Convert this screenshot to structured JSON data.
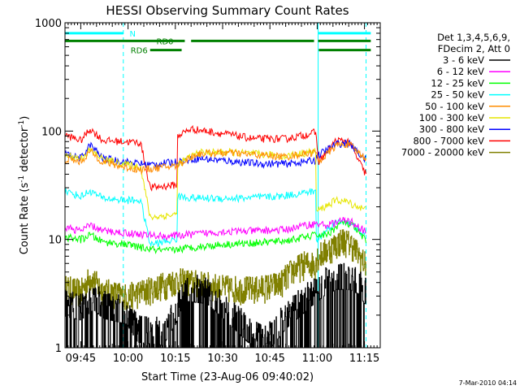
{
  "chart_data": {
    "type": "line",
    "title": "HESSI Observing Summary Count Rates",
    "xlabel": "Start Time (23-Aug-06 09:40:02)",
    "ylabel_main": "Count Rate (s",
    "ylabel_sup1": "-1",
    "ylabel_mid": " detector",
    "ylabel_sup2": "-1",
    "ylabel_end": ")",
    "ylog": true,
    "ylim": [
      1,
      1000
    ],
    "xlim_min": [
      0,
      100
    ],
    "xticks": [
      {
        "label": "09:45",
        "t": 5
      },
      {
        "label": "10:00",
        "t": 20
      },
      {
        "label": "10:15",
        "t": 35
      },
      {
        "label": "10:30",
        "t": 50
      },
      {
        "label": "10:45",
        "t": 65
      },
      {
        "label": "11:00",
        "t": 80
      },
      {
        "label": "11:15",
        "t": 95
      }
    ],
    "yticks": [
      {
        "label": "1",
        "v": 1
      },
      {
        "label": "10",
        "v": 10
      },
      {
        "label": "100",
        "v": 100
      },
      {
        "label": "1000",
        "v": 1000
      }
    ],
    "legend_header": [
      "Det 1,3,4,5,6,9,",
      "FDecim 2, Att 0"
    ],
    "legend_position": "top-right, outside plot",
    "series": [
      {
        "name": "3 - 6 keV",
        "color": "#000000",
        "knots": [
          [
            0,
            2.6
          ],
          [
            5,
            2.4
          ],
          [
            9,
            3.0
          ],
          [
            12,
            2.5
          ],
          [
            19.5,
            2.2
          ],
          [
            23,
            1.5
          ],
          [
            31,
            1.4
          ],
          [
            35,
            2.2
          ],
          [
            38,
            3.6
          ],
          [
            45,
            3.4
          ],
          [
            52,
            2.2
          ],
          [
            58,
            1.5
          ],
          [
            64,
            1.2
          ],
          [
            70,
            2.0
          ],
          [
            78,
            3.2
          ],
          [
            82,
            4.0
          ],
          [
            86,
            4.6
          ],
          [
            90,
            4.6
          ],
          [
            93,
            4.2
          ],
          [
            95,
            3.4
          ]
        ]
      },
      {
        "name": "6 - 12 keV",
        "color": "#ff00ff",
        "knots": [
          [
            0,
            13
          ],
          [
            5,
            12
          ],
          [
            8,
            13.5
          ],
          [
            12,
            12
          ],
          [
            19.5,
            11.5
          ],
          [
            26,
            11
          ],
          [
            32,
            10.7
          ],
          [
            38,
            11
          ],
          [
            50,
            11.8
          ],
          [
            60,
            12
          ],
          [
            70,
            12.3
          ],
          [
            76,
            13.5
          ],
          [
            79.5,
            14
          ],
          [
            83,
            13.5
          ],
          [
            88,
            15
          ],
          [
            91,
            14.5
          ],
          [
            95,
            12
          ]
        ]
      },
      {
        "name": "12 - 25 keV",
        "color": "#00ff00",
        "knots": [
          [
            0,
            10.5
          ],
          [
            5,
            10
          ],
          [
            8,
            11
          ],
          [
            12,
            9.5
          ],
          [
            19.5,
            9
          ],
          [
            26,
            8.2
          ],
          [
            32,
            7.8
          ],
          [
            38,
            8.3
          ],
          [
            50,
            9
          ],
          [
            60,
            9.3
          ],
          [
            70,
            9.7
          ],
          [
            76,
            10.5
          ],
          [
            79.5,
            11
          ],
          [
            83,
            11
          ],
          [
            88,
            14.5
          ],
          [
            91,
            13.5
          ],
          [
            95,
            10
          ]
        ]
      },
      {
        "name": "25 - 50 keV",
        "color": "#00ffff",
        "knots": [
          [
            0,
            28
          ],
          [
            5,
            25
          ],
          [
            8,
            28
          ],
          [
            12,
            24
          ],
          [
            19.5,
            23
          ],
          [
            24,
            23
          ],
          [
            27,
            9
          ],
          [
            35.5,
            10
          ],
          [
            35.5,
            25
          ],
          [
            42,
            24
          ],
          [
            55,
            24
          ],
          [
            68,
            25
          ],
          [
            76,
            27
          ],
          [
            79.5,
            28
          ],
          [
            79.5,
            9.5
          ],
          [
            85,
            14
          ],
          [
            89,
            15
          ],
          [
            95,
            11
          ]
        ]
      },
      {
        "name": "50 - 100 keV",
        "color": "#ff8c00",
        "knots": [
          [
            0,
            55
          ],
          [
            5,
            52
          ],
          [
            8,
            65
          ],
          [
            12,
            52
          ],
          [
            19.5,
            46
          ],
          [
            24,
            44
          ],
          [
            27,
            45
          ],
          [
            35.5,
            48
          ],
          [
            42,
            62
          ],
          [
            52,
            63
          ],
          [
            62,
            60
          ],
          [
            70,
            58
          ],
          [
            76,
            62
          ],
          [
            79.5,
            64
          ],
          [
            80.5,
            52
          ],
          [
            86,
            74
          ],
          [
            90,
            76
          ],
          [
            95,
            57
          ]
        ]
      },
      {
        "name": "100 - 300 keV",
        "color": "#e6e600",
        "knots": [
          [
            0,
            60
          ],
          [
            5,
            56
          ],
          [
            8,
            67
          ],
          [
            12,
            55
          ],
          [
            19.5,
            49
          ],
          [
            24,
            47
          ],
          [
            27,
            16
          ],
          [
            35.5,
            17
          ],
          [
            35.5,
            49
          ],
          [
            42,
            63
          ],
          [
            52,
            64
          ],
          [
            62,
            61
          ],
          [
            70,
            59
          ],
          [
            76,
            63
          ],
          [
            79.5,
            65
          ],
          [
            79.5,
            18
          ],
          [
            86,
            23
          ],
          [
            89,
            22.5
          ],
          [
            95,
            19
          ]
        ]
      },
      {
        "name": "300 - 800 keV",
        "color": "#0000ff",
        "knots": [
          [
            0,
            62
          ],
          [
            5,
            56
          ],
          [
            8,
            75
          ],
          [
            12,
            56
          ],
          [
            19.5,
            52
          ],
          [
            24,
            50
          ],
          [
            27,
            49
          ],
          [
            35.5,
            52
          ],
          [
            42,
            56
          ],
          [
            52,
            53
          ],
          [
            62,
            50
          ],
          [
            70,
            50
          ],
          [
            76,
            52
          ],
          [
            79.5,
            54
          ],
          [
            79.5,
            58
          ],
          [
            86,
            76
          ],
          [
            90,
            78
          ],
          [
            95,
            55
          ]
        ]
      },
      {
        "name": "800 - 7000 keV",
        "color": "#ff0000",
        "knots": [
          [
            0,
            92
          ],
          [
            5,
            82
          ],
          [
            8,
            105
          ],
          [
            12,
            82
          ],
          [
            19.5,
            80
          ],
          [
            24,
            78
          ],
          [
            27,
            30
          ],
          [
            35.5,
            32
          ],
          [
            35.5,
            90
          ],
          [
            40,
            105
          ],
          [
            50,
            95
          ],
          [
            60,
            85
          ],
          [
            70,
            85
          ],
          [
            76,
            92
          ],
          [
            79.5,
            98
          ],
          [
            80.5,
            52
          ],
          [
            86,
            82
          ],
          [
            90,
            80
          ],
          [
            95,
            42
          ]
        ]
      },
      {
        "name": "7000 - 20000 keV",
        "color": "#808000",
        "knots": [
          [
            0,
            3.6
          ],
          [
            5,
            3.3
          ],
          [
            8,
            4.5
          ],
          [
            12,
            3.4
          ],
          [
            19.5,
            3.0
          ],
          [
            27,
            3.5
          ],
          [
            35,
            4.2
          ],
          [
            42,
            4.0
          ],
          [
            50,
            3.6
          ],
          [
            60,
            3.5
          ],
          [
            68,
            3.9
          ],
          [
            72,
            5.2
          ],
          [
            76,
            6.0
          ],
          [
            79.5,
            6.0
          ],
          [
            79.5,
            6.8
          ],
          [
            88,
            10
          ],
          [
            91,
            9
          ],
          [
            95,
            6
          ]
        ]
      }
    ],
    "vlines": [
      {
        "t": 0,
        "style": "solid",
        "color": "#00ffff"
      },
      {
        "t": 18.5,
        "style": "dashed",
        "color": "#00ffff"
      },
      {
        "t": 80.3,
        "style": "solid",
        "color": "#00ffff"
      },
      {
        "t": 95.5,
        "style": "dashed",
        "color": "#00ffff"
      }
    ],
    "flags": [
      {
        "label": "N",
        "color": "#00ffff",
        "value": 800,
        "segments": [
          [
            0,
            18.5
          ],
          [
            80.3,
            97
          ]
        ],
        "label_t": 20.5
      },
      {
        "label": "RD0",
        "color": "#008000",
        "value": 680,
        "segments": [
          [
            0,
            38
          ],
          [
            40,
            79
          ],
          [
            80.3,
            97
          ]
        ],
        "label_t": 29
      },
      {
        "label": "RD6",
        "color": "#008000",
        "value": 560,
        "segments": [
          [
            27,
            37
          ],
          [
            80.5,
            97
          ]
        ],
        "label_t": 20.8
      }
    ],
    "timestamp": "7-Mar-2010 04:14"
  }
}
